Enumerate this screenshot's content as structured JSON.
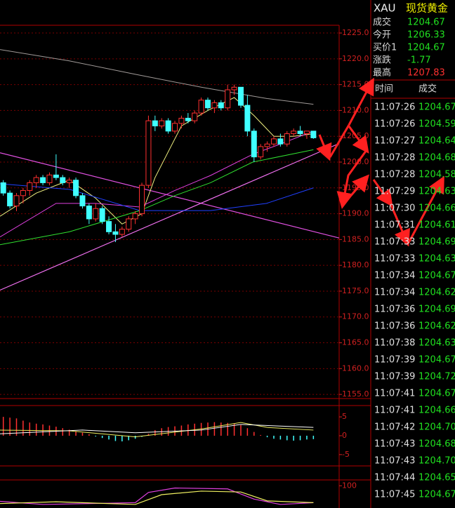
{
  "quote": {
    "symbol": "XAU",
    "name": "现货黄金",
    "fields": [
      {
        "label": "成交",
        "value": "1204.67",
        "color": "#20e020"
      },
      {
        "label": "今开",
        "value": "1206.33",
        "color": "#20e020"
      },
      {
        "label": "买价1",
        "value": "1204.67",
        "color": "#20e020"
      },
      {
        "label": "涨跌",
        "value": "-1.77",
        "color": "#20e020"
      },
      {
        "label": "最高",
        "value": "1207.83",
        "color": "#ff3030"
      }
    ]
  },
  "ticks_table": {
    "headers": [
      "时间",
      "成交"
    ],
    "rows": [
      [
        "11:07:26",
        "1204.67"
      ],
      [
        "11:07:26",
        "1204.59"
      ],
      [
        "11:07:27",
        "1204.64"
      ],
      [
        "11:07:28",
        "1204.68"
      ],
      [
        "11:07:28",
        "1204.58"
      ],
      [
        "11:07:29",
        "1204.63"
      ],
      [
        "11:07:30",
        "1204.66"
      ],
      [
        "11:07:31",
        "1204.61"
      ],
      [
        "11:07:33",
        "1204.69"
      ],
      [
        "11:07:33",
        "1204.63"
      ],
      [
        "11:07:34",
        "1204.67"
      ],
      [
        "11:07:34",
        "1204.62"
      ],
      [
        "11:07:36",
        "1204.69"
      ],
      [
        "11:07:36",
        "1204.62"
      ],
      [
        "11:07:38",
        "1204.63"
      ],
      [
        "11:07:39",
        "1204.67"
      ],
      [
        "11:07:39",
        "1204.72"
      ],
      [
        "11:07:41",
        "1204.67"
      ],
      [
        "11:07:41",
        "1204.66"
      ],
      [
        "11:07:42",
        "1204.70"
      ],
      [
        "11:07:43",
        "1204.68"
      ],
      [
        "11:07:43",
        "1204.70"
      ],
      [
        "11:07:44",
        "1204.65"
      ],
      [
        "11:07:45",
        "1204.67"
      ]
    ]
  },
  "chart": {
    "type": "candlestick",
    "xlim": [
      -0.5,
      50.9
    ],
    "ylim": [
      1154.2,
      1226.5
    ],
    "grid": true,
    "yticks": [
      {
        "value": 1225,
        "label": "1225.0"
      },
      {
        "value": 1220,
        "label": "1220.0"
      },
      {
        "value": 1215,
        "label": "1215.0"
      },
      {
        "value": 1210,
        "label": "1210.0"
      },
      {
        "value": 1205,
        "label": "1205.0"
      },
      {
        "value": 1200,
        "label": "1200.0"
      },
      {
        "value": 1195,
        "label": "1195.0"
      },
      {
        "value": 1190,
        "label": "1190.0"
      },
      {
        "value": 1185,
        "label": "1185.0"
      },
      {
        "value": 1180,
        "label": "1180.0"
      },
      {
        "value": 1175,
        "label": "1175.0"
      },
      {
        "value": 1170,
        "label": "1170.0"
      },
      {
        "value": 1165,
        "label": "1165.0"
      },
      {
        "value": 1160,
        "label": "1160.0"
      },
      {
        "value": 1155,
        "label": "1155.0"
      }
    ],
    "up_color": "#ff3030",
    "down_color": "#40ffff",
    "candles": [
      [
        1196,
        1196.5,
        1193.5,
        1194
      ],
      [
        1194,
        1194.5,
        1191,
        1191.5
      ],
      [
        1191.5,
        1194,
        1190.5,
        1193.5
      ],
      [
        1193.5,
        1195,
        1192,
        1194.5
      ],
      [
        1194.5,
        1196.5,
        1193.5,
        1196
      ],
      [
        1196,
        1197.5,
        1195,
        1197
      ],
      [
        1197,
        1197.5,
        1195.5,
        1196
      ],
      [
        1196,
        1198,
        1195.5,
        1197.5
      ],
      [
        1197.5,
        1201.5,
        1196.5,
        1197
      ],
      [
        1197,
        1197.5,
        1195.5,
        1196
      ],
      [
        1196,
        1197,
        1195,
        1196.5
      ],
      [
        1196.5,
        1197,
        1193,
        1193.5
      ],
      [
        1193.5,
        1194,
        1191,
        1191.5
      ],
      [
        1191.5,
        1192,
        1188,
        1189
      ],
      [
        1189,
        1192,
        1188.5,
        1191
      ],
      [
        1191,
        1191.5,
        1188,
        1188.5
      ],
      [
        1188.5,
        1189.5,
        1186,
        1186.5
      ],
      [
        1186.5,
        1188,
        1184.5,
        1186
      ],
      [
        1186,
        1187.5,
        1185.5,
        1187
      ],
      [
        1187,
        1189.5,
        1186.5,
        1189
      ],
      [
        1189,
        1190.5,
        1188,
        1190
      ],
      [
        1190,
        1196,
        1189.5,
        1195.5
      ],
      [
        1195.5,
        1209,
        1195,
        1208
      ],
      [
        1208,
        1209,
        1206,
        1207
      ],
      [
        1207,
        1208.5,
        1206.5,
        1208
      ],
      [
        1208,
        1208.5,
        1205.5,
        1206
      ],
      [
        1206,
        1208,
        1205.5,
        1207.5
      ],
      [
        1207.5,
        1209,
        1206.5,
        1208.5
      ],
      [
        1208.5,
        1209.5,
        1207.5,
        1208
      ],
      [
        1208,
        1210,
        1207.5,
        1209.5
      ],
      [
        1209.5,
        1212.5,
        1209,
        1212
      ],
      [
        1212,
        1212.5,
        1210,
        1210.5
      ],
      [
        1210.5,
        1212,
        1209.5,
        1211.5
      ],
      [
        1211.5,
        1212,
        1210,
        1210.5
      ],
      [
        1210.5,
        1215,
        1210,
        1214
      ],
      [
        1214,
        1215,
        1213,
        1214.5
      ],
      [
        1214.5,
        1214.5,
        1210.5,
        1211
      ],
      [
        1211,
        1213,
        1205,
        1206
      ],
      [
        1206,
        1206.5,
        1200,
        1201
      ],
      [
        1201,
        1203.5,
        1200.5,
        1203
      ],
      [
        1203,
        1204,
        1202,
        1203.5
      ],
      [
        1203.5,
        1205,
        1203,
        1204.5
      ],
      [
        1204.5,
        1205.5,
        1203,
        1203.5
      ],
      [
        1203.5,
        1206,
        1203,
        1205.5
      ],
      [
        1205.5,
        1206.5,
        1205,
        1206
      ],
      [
        1206,
        1207,
        1205,
        1205.5
      ],
      [
        1205.5,
        1206,
        1204.5,
        1206
      ],
      [
        1206,
        1206,
        1204.5,
        1204.7
      ]
    ],
    "lines": [
      {
        "color": "#a09a98",
        "x": [
          -0.5,
          10,
          20,
          30,
          40,
          47
        ],
        "values": [
          1221.8,
          1219.6,
          1217,
          1214.5,
          1212.3,
          1211.2
        ]
      },
      {
        "color": "#f0f080",
        "x": [
          -0.5,
          5,
          10,
          14,
          18,
          21,
          23,
          27,
          31,
          35,
          38,
          41,
          44,
          47
        ],
        "values": [
          1189.5,
          1194,
          1196.5,
          1193,
          1188,
          1190,
          1197,
          1207,
          1210,
          1212.5,
          1209,
          1205,
          1205,
          1205.5
        ]
      },
      {
        "color": "#e040e0",
        "x": [
          -0.5,
          8,
          14,
          20.7,
          26,
          31.4,
          37.8,
          42,
          47
        ],
        "values": [
          1185.5,
          1192,
          1192,
          1191.3,
          1194.5,
          1197.4,
          1201.5,
          1203.5,
          1206
        ]
      },
      {
        "color": "#30e030",
        "x": [
          -0.5,
          10,
          20.7,
          26,
          31.4,
          37.8,
          47
        ],
        "values": [
          1184,
          1186.5,
          1190.6,
          1193.5,
          1196,
          1200,
          1202.4
        ]
      },
      {
        "color": "#2040ff",
        "x": [
          -0.5,
          10.1,
          20.7,
          31.4,
          39.9,
          47
        ],
        "values": [
          1195.8,
          1194.7,
          1190.6,
          1190.6,
          1192,
          1195
        ]
      }
    ],
    "trendlines": [
      {
        "color": "#e050e0",
        "x": [
          -0.5,
          50.9
        ],
        "values": [
          1201.8,
          1185.3
        ]
      },
      {
        "color": "#f070f0",
        "x": [
          -0.5,
          50.9
        ],
        "values": [
          1175.2,
          1203.6
        ]
      }
    ]
  },
  "macd": {
    "type": "bar",
    "xlim": [
      -0.5,
      50.9
    ],
    "ylim": [
      -8,
      8
    ],
    "yticks": [
      5,
      0,
      -5
    ],
    "up_color": "#ff3030",
    "down_color": "#40ffff",
    "values": [
      5,
      4.8,
      4.6,
      4,
      3.5,
      3.2,
      3,
      2.7,
      2.4,
      2,
      1.6,
      1.2,
      0.8,
      0.4,
      -0.2,
      -0.6,
      -1,
      -1.4,
      -1.5,
      -1.2,
      -0.8,
      -0.3,
      0.5,
      1.5,
      2,
      2.3,
      2.5,
      2.7,
      3,
      3.2,
      3.4,
      3.5,
      3.6,
      3.5,
      3.4,
      3.2,
      2.8,
      2,
      1,
      0.2,
      -0.4,
      -0.8,
      -1,
      -1.2,
      -1.3,
      -1.2,
      -1,
      -0.9
    ],
    "lines": [
      {
        "color": "#f0f060",
        "x": [
          -0.5,
          10,
          20,
          30,
          36,
          40,
          47
        ],
        "values": [
          1.5,
          1.3,
          -0.3,
          1.8,
          3.5,
          2.2,
          1.5
        ]
      },
      {
        "color": "#ffffff",
        "x": [
          -0.5,
          12,
          20,
          30,
          36,
          47
        ],
        "values": [
          0.5,
          1.5,
          0.8,
          1.5,
          3,
          2.2
        ]
      }
    ]
  },
  "lower": {
    "type": "line",
    "xlim": [
      -0.5,
      50.9
    ],
    "ylim": [
      50,
      110
    ],
    "yticks": [
      100
    ],
    "lines": [
      {
        "color": "#e040e0",
        "x": [
          -0.5,
          6,
          20,
          22,
          26,
          34,
          38,
          42,
          47
        ],
        "values": [
          65,
          58,
          62,
          85,
          95,
          93,
          70,
          58,
          62
        ]
      },
      {
        "color": "#f0f060",
        "x": [
          -0.5,
          8,
          20,
          24,
          30,
          36,
          40,
          47
        ],
        "values": [
          60,
          64,
          58,
          80,
          88,
          86,
          66,
          62
        ]
      }
    ]
  }
}
